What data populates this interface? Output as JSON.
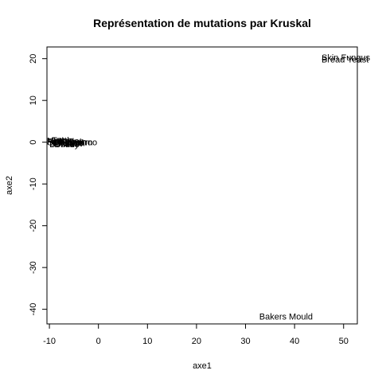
{
  "chart_data": {
    "type": "scatter",
    "title": "Représentation de mutations par Kruskal",
    "xlabel": "axe1",
    "ylabel": "axe2",
    "xlim": [
      -10.5,
      52.8
    ],
    "ylim": [
      -43.5,
      22.8
    ],
    "x_ticks": [
      -10,
      0,
      10,
      20,
      30,
      40,
      50
    ],
    "y_ticks": [
      -40,
      -30,
      -20,
      -10,
      0,
      10,
      20
    ],
    "grid": false,
    "points": [
      {
        "label": "Skin Fungus",
        "x": 45.5,
        "y": 20.3
      },
      {
        "label": "Bread Yeast",
        "x": 45.5,
        "y": 19.8
      },
      {
        "label": "Bakers Mould",
        "x": 32.8,
        "y": -41.7
      },
      {
        "label": "Moth",
        "x": -10.5,
        "y": 0.4
      },
      {
        "label": "Fruit Fly",
        "x": -10.5,
        "y": 0.2
      },
      {
        "label": "Screwworm",
        "x": -10.5,
        "y": 0.0
      },
      {
        "label": "Silkworm",
        "x": -10.0,
        "y": -0.2
      },
      {
        "label": "Horse",
        "x": -10.5,
        "y": 0.3
      },
      {
        "label": "Donkey",
        "x": -10.0,
        "y": -0.4
      },
      {
        "label": "Turtle",
        "x": -9.5,
        "y": 0.5
      },
      {
        "label": "Chicken",
        "x": -9.5,
        "y": -0.1
      },
      {
        "label": "Penguin",
        "x": -9.0,
        "y": 0.1
      },
      {
        "label": "Rabbit",
        "x": -8.5,
        "y": -0.3
      },
      {
        "label": "Kangaroo",
        "x": -8.0,
        "y": 0.0
      },
      {
        "label": "Pigeon",
        "x": -8.5,
        "y": 0.3
      },
      {
        "label": "Duck",
        "x": -9.0,
        "y": -0.4
      }
    ]
  }
}
